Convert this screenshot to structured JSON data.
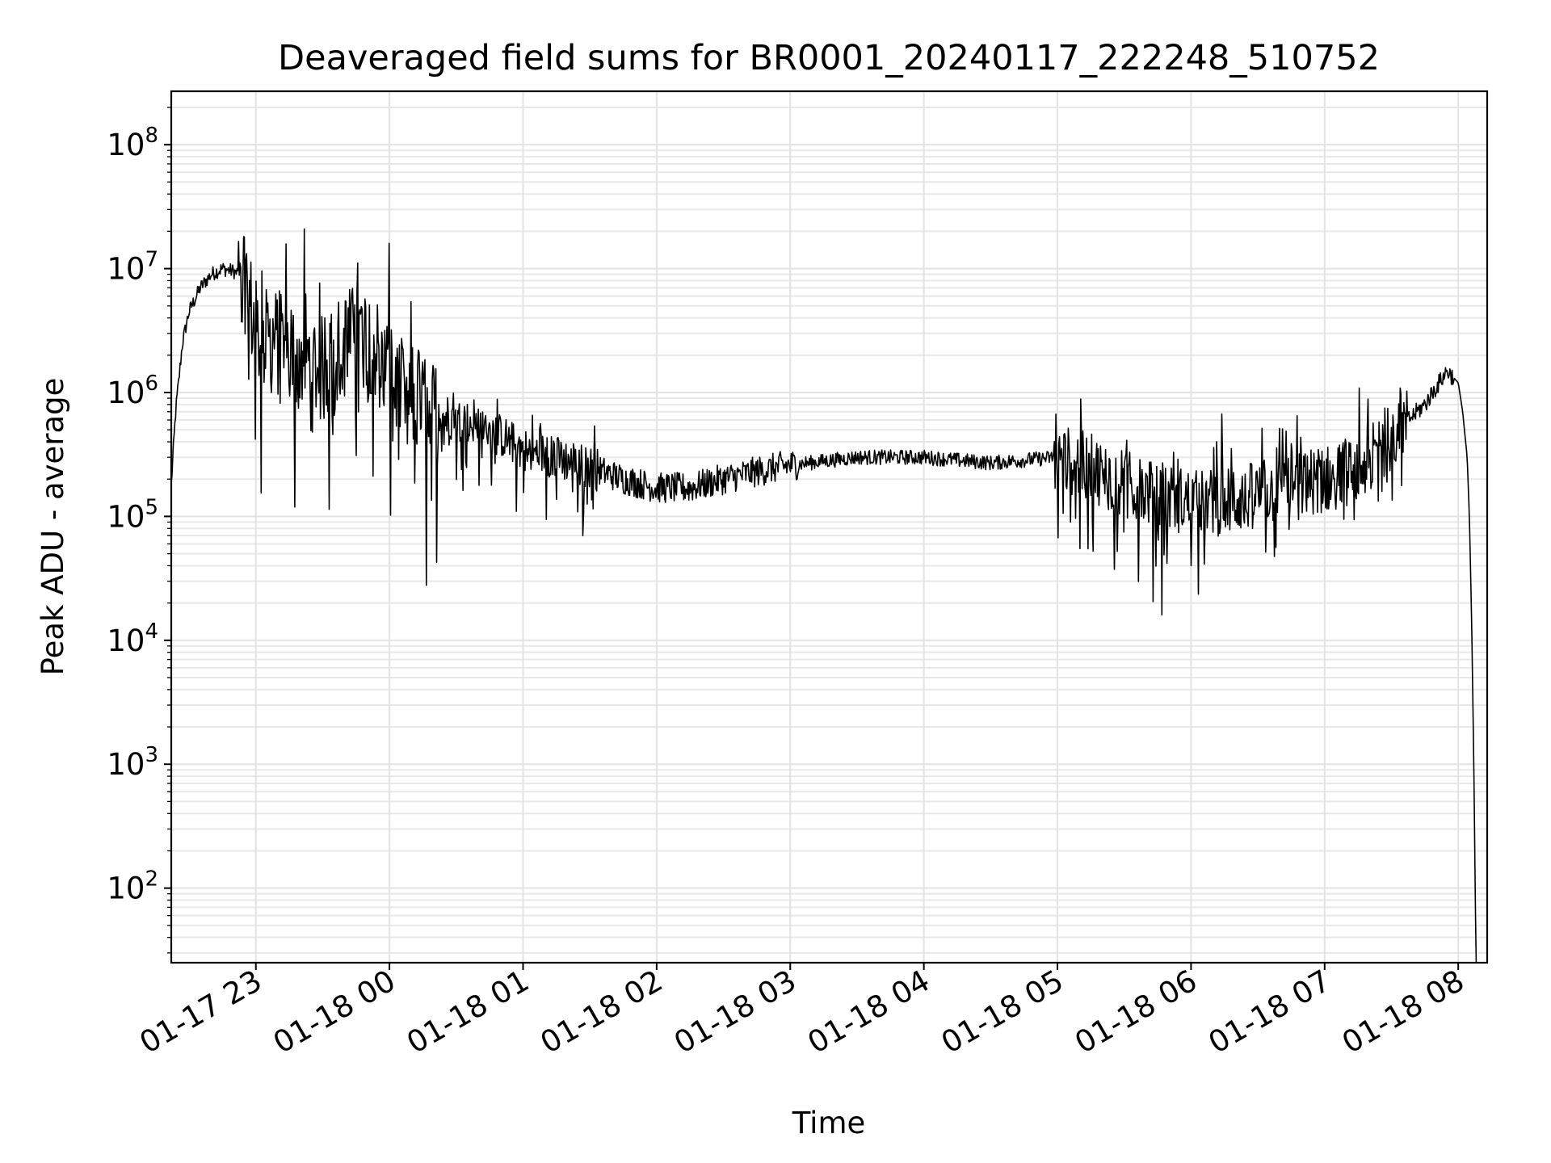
{
  "chart_data": {
    "type": "line",
    "title": "Deaveraged field sums for BR0001_20240117_222248_510752",
    "xlabel": "Time",
    "ylabel": "Peak ADU - average",
    "xscale": "time",
    "yscale": "log",
    "xlim": [
      "2024-01-17 22:22",
      "2024-01-18 08:13"
    ],
    "ylim": [
      25,
      270000000
    ],
    "grid": true,
    "legend": "none",
    "line_color": "#000000",
    "x_ticks": [
      {
        "time": "2024-01-17 23:00",
        "label": "01-17 23"
      },
      {
        "time": "2024-01-18 00:00",
        "label": "01-18 00"
      },
      {
        "time": "2024-01-18 01:00",
        "label": "01-18 01"
      },
      {
        "time": "2024-01-18 02:00",
        "label": "01-18 02"
      },
      {
        "time": "2024-01-18 03:00",
        "label": "01-18 03"
      },
      {
        "time": "2024-01-18 04:00",
        "label": "01-18 04"
      },
      {
        "time": "2024-01-18 05:00",
        "label": "01-18 05"
      },
      {
        "time": "2024-01-18 06:00",
        "label": "01-18 06"
      },
      {
        "time": "2024-01-18 07:00",
        "label": "01-18 07"
      },
      {
        "time": "2024-01-18 08:00",
        "label": "01-18 08"
      }
    ],
    "y_ticks": [
      {
        "value": 100,
        "base": "10",
        "exp": "2"
      },
      {
        "value": 1000,
        "base": "10",
        "exp": "3"
      },
      {
        "value": 10000,
        "base": "10",
        "exp": "4"
      },
      {
        "value": 100000,
        "base": "10",
        "exp": "5"
      },
      {
        "value": 1000000,
        "base": "10",
        "exp": "6"
      },
      {
        "value": 10000000,
        "base": "10",
        "exp": "7"
      },
      {
        "value": 100000000,
        "base": "10",
        "exp": "8"
      }
    ],
    "series": [
      {
        "points": [
          [
            "2024-01-17 22:22",
            180000
          ],
          [
            "2024-01-17 22:24",
            700000
          ],
          [
            "2024-01-17 22:27",
            2500000
          ],
          [
            "2024-01-17 22:30",
            4500000
          ],
          [
            "2024-01-17 22:35",
            7000000
          ],
          [
            "2024-01-17 22:40",
            9000000
          ],
          [
            "2024-01-17 22:45",
            10000000
          ],
          [
            "2024-01-17 22:50",
            9500000
          ],
          [
            "2024-01-17 22:55",
            8500000
          ],
          [
            "2024-01-17 23:00",
            3000000
          ],
          [
            "2024-01-17 23:10",
            2500000
          ],
          [
            "2024-01-17 23:20",
            2000000
          ],
          [
            "2024-01-17 23:30",
            1500000
          ],
          [
            "2024-01-17 23:40",
            2500000
          ],
          [
            "2024-01-17 23:50",
            3000000
          ],
          [
            "2024-01-18 00:00",
            1500000
          ],
          [
            "2024-01-18 00:10",
            700000
          ],
          [
            "2024-01-18 00:20",
            700000
          ],
          [
            "2024-01-18 00:30",
            600000
          ],
          [
            "2024-01-18 00:40",
            550000
          ],
          [
            "2024-01-18 00:50",
            450000
          ],
          [
            "2024-01-18 01:00",
            350000
          ],
          [
            "2024-01-18 01:15",
            300000
          ],
          [
            "2024-01-18 01:30",
            250000
          ],
          [
            "2024-01-18 01:45",
            200000
          ],
          [
            "2024-01-18 02:00",
            170000
          ],
          [
            "2024-01-18 02:15",
            170000
          ],
          [
            "2024-01-18 02:30",
            200000
          ],
          [
            "2024-01-18 02:45",
            230000
          ],
          [
            "2024-01-18 03:00",
            260000
          ],
          [
            "2024-01-18 03:30",
            300000
          ],
          [
            "2024-01-18 04:00",
            300000
          ],
          [
            "2024-01-18 04:30",
            270000
          ],
          [
            "2024-01-18 05:00",
            300000
          ],
          [
            "2024-01-18 05:15",
            250000
          ],
          [
            "2024-01-18 05:30",
            180000
          ],
          [
            "2024-01-18 05:45",
            150000
          ],
          [
            "2024-01-18 06:00",
            130000
          ],
          [
            "2024-01-18 06:15",
            130000
          ],
          [
            "2024-01-18 06:30",
            150000
          ],
          [
            "2024-01-18 06:45",
            180000
          ],
          [
            "2024-01-18 07:00",
            200000
          ],
          [
            "2024-01-18 07:15",
            230000
          ],
          [
            "2024-01-18 07:30",
            450000
          ],
          [
            "2024-01-18 07:45",
            800000
          ],
          [
            "2024-01-18 07:55",
            1500000
          ],
          [
            "2024-01-18 08:00",
            1200000
          ],
          [
            "2024-01-18 08:02",
            700000
          ],
          [
            "2024-01-18 08:04",
            300000
          ],
          [
            "2024-01-18 08:05",
            100000
          ],
          [
            "2024-01-18 08:06",
            15000
          ],
          [
            "2024-01-18 08:07",
            1000
          ],
          [
            "2024-01-18 08:08",
            25
          ]
        ]
      }
    ]
  }
}
